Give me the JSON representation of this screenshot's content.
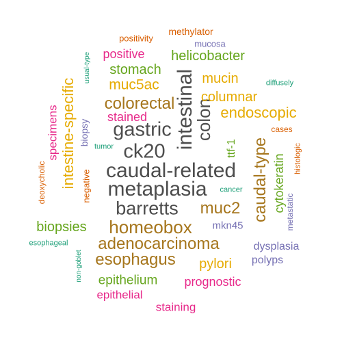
{
  "palette": {
    "dark_gray": "#4d4d4d",
    "brown": "#a6761d",
    "gold": "#e6ab02",
    "green": "#66a61e",
    "magenta": "#e7298a",
    "purple": "#7570b3",
    "orange": "#d95f02",
    "teal": "#1b9e77"
  },
  "words": [
    {
      "text": "caudal-related",
      "color": "dark_gray"
    },
    {
      "text": "metaplasia",
      "color": "dark_gray"
    },
    {
      "text": "intestinal",
      "color": "dark_gray"
    },
    {
      "text": "gastric",
      "color": "dark_gray"
    },
    {
      "text": "ck20",
      "color": "dark_gray"
    },
    {
      "text": "barretts",
      "color": "dark_gray"
    },
    {
      "text": "colon",
      "color": "dark_gray"
    },
    {
      "text": "homeobox",
      "color": "brown"
    },
    {
      "text": "adenocarcinoma",
      "color": "brown"
    },
    {
      "text": "esophagus",
      "color": "brown"
    },
    {
      "text": "colorectal",
      "color": "brown"
    },
    {
      "text": "muc2",
      "color": "brown"
    },
    {
      "text": "caudal-type",
      "color": "brown"
    },
    {
      "text": "muc5ac",
      "color": "gold"
    },
    {
      "text": "intestine-specific",
      "color": "gold"
    },
    {
      "text": "endoscopic",
      "color": "gold"
    },
    {
      "text": "mucin",
      "color": "gold"
    },
    {
      "text": "columnar",
      "color": "gold"
    },
    {
      "text": "pylori",
      "color": "gold"
    },
    {
      "text": "ttf-1",
      "color": "green"
    },
    {
      "text": "stomach",
      "color": "green"
    },
    {
      "text": "helicobacter",
      "color": "green"
    },
    {
      "text": "biopsies",
      "color": "green"
    },
    {
      "text": "epithelium",
      "color": "green"
    },
    {
      "text": "cytokeratin",
      "color": "green"
    },
    {
      "text": "specimens",
      "color": "magenta"
    },
    {
      "text": "stained",
      "color": "magenta"
    },
    {
      "text": "positive",
      "color": "magenta"
    },
    {
      "text": "prognostic",
      "color": "magenta"
    },
    {
      "text": "epithelial",
      "color": "magenta"
    },
    {
      "text": "staining",
      "color": "magenta"
    },
    {
      "text": "dysplasia",
      "color": "purple"
    },
    {
      "text": "polyps",
      "color": "purple"
    },
    {
      "text": "mkn45",
      "color": "purple"
    },
    {
      "text": "mucosa",
      "color": "purple"
    },
    {
      "text": "biopsy",
      "color": "purple"
    },
    {
      "text": "metastatic",
      "color": "purple"
    },
    {
      "text": "methylator",
      "color": "orange"
    },
    {
      "text": "positivity",
      "color": "orange"
    },
    {
      "text": "cases",
      "color": "orange"
    },
    {
      "text": "negative",
      "color": "orange"
    },
    {
      "text": "histologic",
      "color": "orange"
    },
    {
      "text": "deoxycholic",
      "color": "orange"
    },
    {
      "text": "esophageal",
      "color": "teal"
    },
    {
      "text": "diffusely",
      "color": "teal"
    },
    {
      "text": "tumor",
      "color": "teal"
    },
    {
      "text": "cancer",
      "color": "teal"
    },
    {
      "text": "usual-type",
      "color": "teal"
    },
    {
      "text": "non-goblet",
      "color": "teal"
    }
  ]
}
